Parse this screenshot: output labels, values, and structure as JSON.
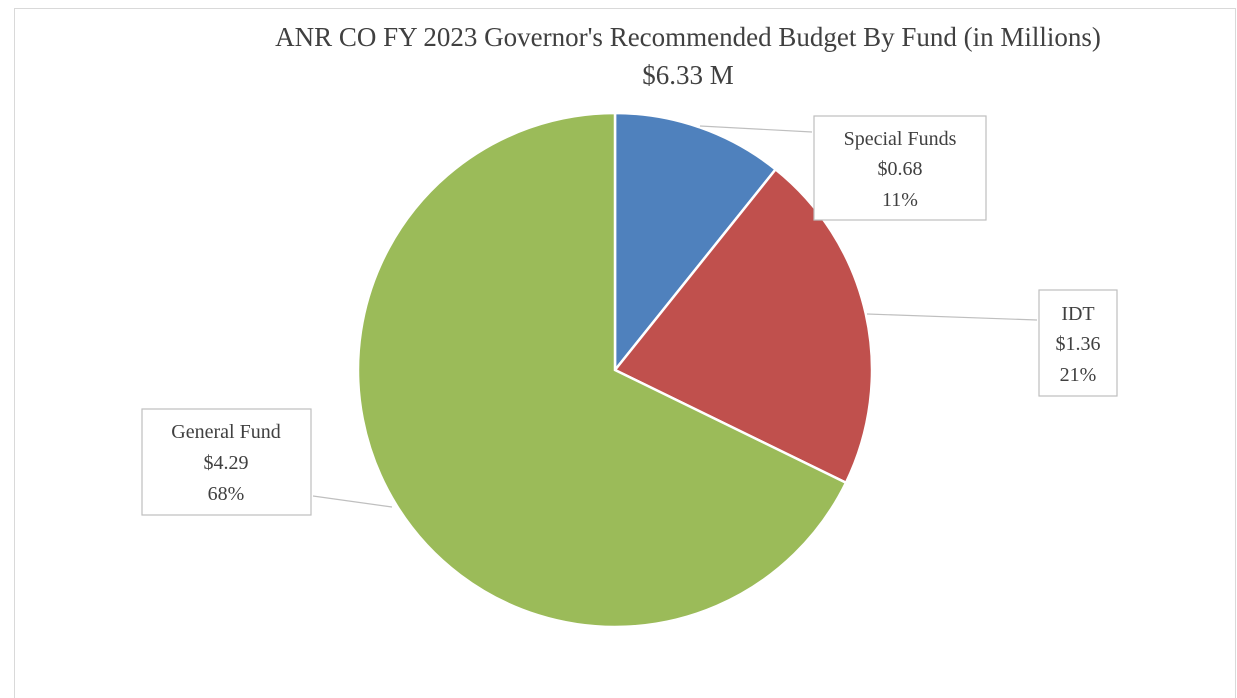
{
  "chart_data": {
    "type": "pie",
    "title": "ANR CO FY 2023 Governor's Recommended Budget By Fund (in Millions)",
    "subtitle": "$6.33 M",
    "start_angle_deg": 0,
    "direction": "clockwise",
    "slices": [
      {
        "name": "Special Funds",
        "value": 0.68,
        "value_label": "$0.68",
        "percent_label": "11%",
        "color": "#4f81bd"
      },
      {
        "name": "IDT",
        "value": 1.36,
        "value_label": "$1.36",
        "percent_label": "21%",
        "color": "#c0504d"
      },
      {
        "name": "General Fund",
        "value": 4.29,
        "value_label": "$4.29",
        "percent_label": "68%",
        "color": "#9bbb59"
      }
    ]
  }
}
